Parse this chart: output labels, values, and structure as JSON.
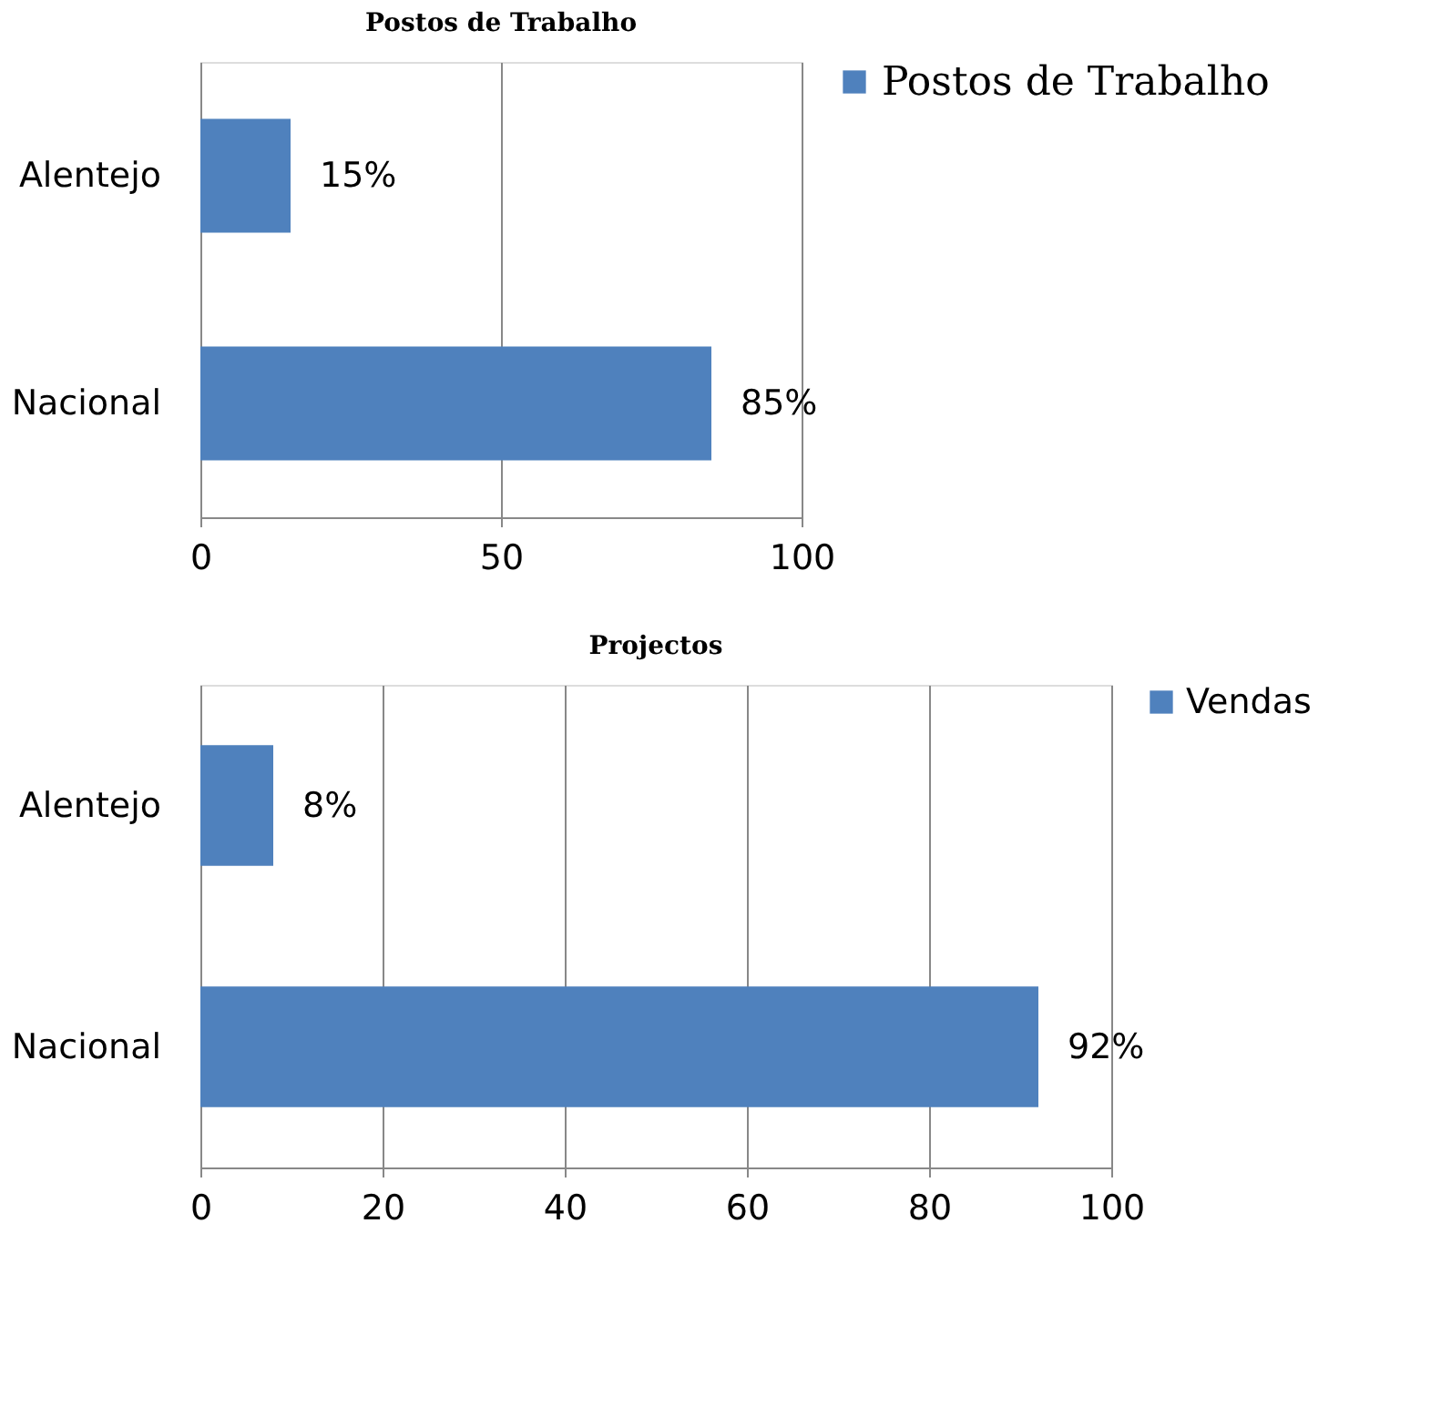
{
  "chart_data": [
    {
      "type": "bar",
      "orientation": "horizontal",
      "title": "Postos de Trabalho",
      "categories": [
        "Alentejo",
        "Nacional"
      ],
      "series": [
        {
          "name": "Postos de Trabalho",
          "color": "#4f81bd",
          "values": [
            15,
            85
          ],
          "value_labels": [
            "15%",
            "85%"
          ]
        }
      ],
      "xlim": [
        0,
        100
      ],
      "xticks": [
        0,
        50,
        100
      ],
      "grid": "x",
      "legend": "right"
    },
    {
      "type": "bar",
      "orientation": "horizontal",
      "title": "Projectos",
      "categories": [
        "Alentejo",
        "Nacional"
      ],
      "series": [
        {
          "name": "Vendas",
          "color": "#4f81bd",
          "values": [
            8,
            92
          ],
          "value_labels": [
            "8%",
            "92%"
          ]
        }
      ],
      "xlim": [
        0,
        100
      ],
      "xticks": [
        0,
        20,
        40,
        60,
        80,
        100
      ],
      "grid": "x",
      "legend": "right"
    }
  ]
}
